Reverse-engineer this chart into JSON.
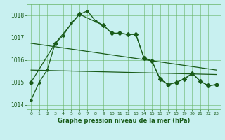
{
  "title": "Graphe pression niveau de la mer (hPa)",
  "bg_color": "#c8f0f0",
  "grid_color": "#66b366",
  "line_color": "#1a5c1a",
  "ylim": [
    1013.8,
    1018.5
  ],
  "xlim": [
    -0.5,
    23.5
  ],
  "yticks": [
    1014,
    1015,
    1016,
    1017,
    1018
  ],
  "xticks": [
    0,
    1,
    2,
    3,
    4,
    5,
    6,
    7,
    8,
    9,
    10,
    11,
    12,
    13,
    14,
    15,
    16,
    17,
    18,
    19,
    20,
    21,
    22,
    23
  ],
  "series1_x": [
    0,
    1,
    2,
    3,
    4,
    5,
    6,
    7,
    8,
    9,
    10,
    11,
    12,
    13,
    14,
    15,
    16,
    17,
    18,
    19,
    20,
    21,
    22,
    23
  ],
  "series1_y": [
    1014.2,
    1015.0,
    1015.55,
    1016.75,
    1017.1,
    1017.65,
    1018.05,
    1018.2,
    1017.75,
    1017.55,
    1017.2,
    1017.2,
    1017.15,
    1017.15,
    1016.1,
    1015.95,
    1015.15,
    1014.9,
    1015.0,
    1015.15,
    1015.4,
    1015.05,
    1014.85,
    1014.9
  ],
  "series2_x": [
    0,
    3,
    6,
    9,
    10,
    11,
    12,
    13,
    14,
    15,
    16,
    17,
    18,
    19,
    20,
    21,
    22,
    23
  ],
  "series2_y": [
    1015.0,
    1016.75,
    1018.05,
    1017.55,
    1017.2,
    1017.2,
    1017.15,
    1017.15,
    1016.1,
    1015.95,
    1015.15,
    1014.9,
    1015.0,
    1015.15,
    1015.4,
    1015.05,
    1014.85,
    1014.9
  ],
  "series3_x": [
    0,
    23
  ],
  "series3_y": [
    1016.75,
    1015.55
  ],
  "series4_x": [
    0,
    23
  ],
  "series4_y": [
    1015.55,
    1015.35
  ]
}
